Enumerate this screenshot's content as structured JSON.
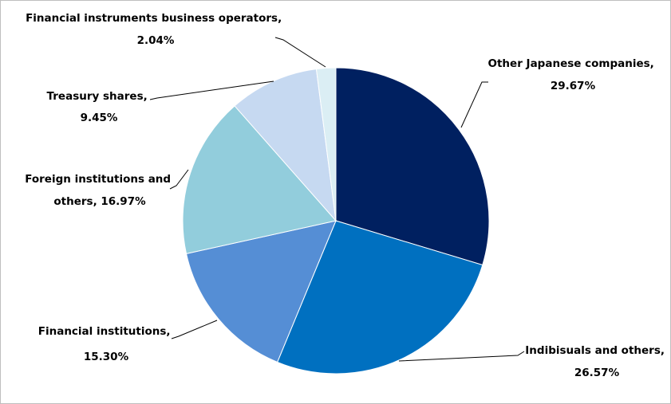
{
  "chart_data": {
    "type": "pie",
    "start_angle_deg": 0,
    "direction": "clockwise",
    "slices": [
      {
        "label": "Other Japanese companies",
        "value": 29.67,
        "value_text": "29.67%",
        "color": "#002060"
      },
      {
        "label": "Indibisuals and others",
        "value": 26.57,
        "value_text": "26.57%",
        "color": "#0070c0"
      },
      {
        "label": "Financial institutions",
        "value": 15.3,
        "value_text": "15.30%",
        "color": "#558ed5"
      },
      {
        "label": "Foreign institutions and others",
        "value": 16.97,
        "value_text": "16.97%",
        "color": "#92cddc"
      },
      {
        "label": "Treasury shares",
        "value": 9.45,
        "value_text": "9.45%",
        "color": "#c6d9f1"
      },
      {
        "label": "Financial instruments business operators",
        "value": 2.04,
        "value_text": "2.04%",
        "color": "#dbeef4"
      }
    ],
    "labels": [
      {
        "line1": "Other Japanese companies,",
        "line2": "29.67%"
      },
      {
        "line1": "Indibisuals and others,",
        "line2": "26.57%"
      },
      {
        "line1": "Financial institutions,",
        "line2": "15.30%"
      },
      {
        "line1": "Foreign institutions and",
        "line2": "others, 16.97%"
      },
      {
        "line1": "Treasury shares,",
        "line2": "9.45%"
      },
      {
        "line1": "Financial instruments business operators,",
        "line2": "2.04%"
      }
    ]
  }
}
